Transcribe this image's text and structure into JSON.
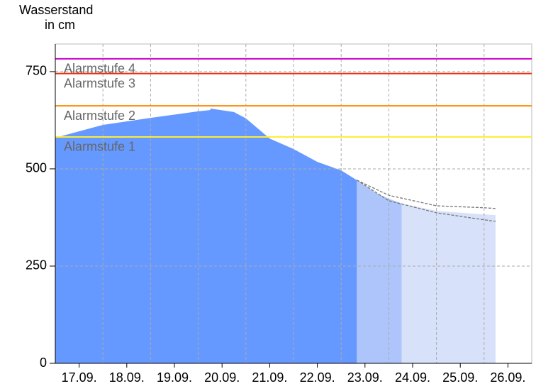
{
  "chart_data": {
    "type": "area",
    "y_label": [
      "Wasserstand",
      "in cm"
    ],
    "xlim": [
      0,
      10
    ],
    "ylim": [
      0,
      821
    ],
    "xticks": [
      {
        "value": 0.5,
        "label": "17.09."
      },
      {
        "value": 1.5,
        "label": "18.09."
      },
      {
        "value": 2.5,
        "label": "19.09."
      },
      {
        "value": 3.5,
        "label": "20.09."
      },
      {
        "value": 4.5,
        "label": "21.09."
      },
      {
        "value": 5.5,
        "label": "22.09."
      },
      {
        "value": 6.5,
        "label": "23.09."
      },
      {
        "value": 7.5,
        "label": "24.09."
      },
      {
        "value": 8.5,
        "label": "25.09."
      },
      {
        "value": 9.5,
        "label": "26.09."
      }
    ],
    "xgrid": [
      1,
      2,
      3,
      4,
      5,
      6,
      7,
      8,
      9
    ],
    "yticks": [
      0,
      250,
      500,
      750
    ],
    "grid": true,
    "thresholds": [
      {
        "label": "Alarmstufe 1",
        "value": 582,
        "color": "#ffee33"
      },
      {
        "label": "Alarmstufe 2",
        "value": 662,
        "color": "#ff8800"
      },
      {
        "label": "Alarmstufe 3",
        "value": 745,
        "color": "#e83010"
      },
      {
        "label": "Alarmstufe 4",
        "value": 783,
        "color": "#cc00cc"
      }
    ],
    "series": [
      {
        "style": "area",
        "color": "#6699ff",
        "x": [
          0,
          1,
          2,
          3,
          3.25,
          3.26,
          3.75,
          4,
          4.5,
          5,
          5.5,
          6,
          6.33
        ],
        "values": [
          580,
          613,
          631,
          648,
          651,
          655,
          646,
          630,
          578,
          551,
          518,
          496,
          471
        ]
      },
      {
        "style": "area",
        "color": "#adc5fb",
        "x": [
          6.33,
          6.7,
          7,
          7.27
        ],
        "values": [
          471,
          440,
          423,
          411
        ]
      },
      {
        "style": "area",
        "color": "#d7e2fa",
        "x": [
          7.27,
          8,
          9,
          9.24
        ],
        "values": [
          411,
          392,
          383,
          381
        ]
      },
      {
        "style": "dashed",
        "color": "#777777",
        "x": [
          6.33,
          7,
          8,
          9,
          9.24
        ],
        "values": [
          471,
          432,
          405,
          400,
          398
        ]
      },
      {
        "style": "dashed",
        "color": "#777777",
        "x": [
          6.33,
          7,
          8,
          9,
          9.24
        ],
        "values": [
          471,
          418,
          387,
          369,
          365
        ]
      }
    ]
  }
}
